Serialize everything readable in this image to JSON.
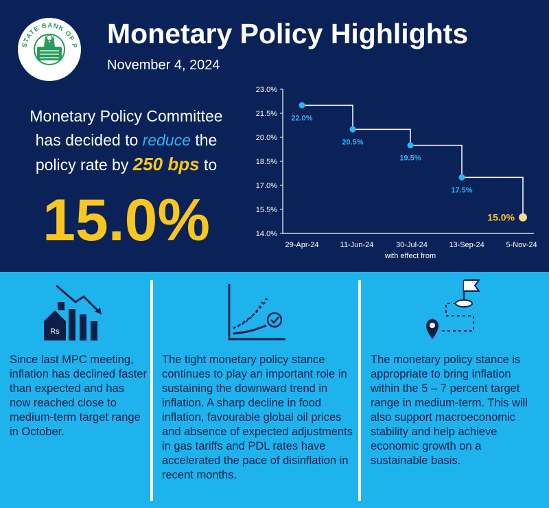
{
  "header": {
    "title": "Monetary Policy Highlights",
    "date": "November 4, 2024"
  },
  "logo": {
    "text": "STATE BANK OF PAKISTAN"
  },
  "decision": {
    "line1": "Monetary Policy Committee",
    "line2_a": "has decided to ",
    "line2_em": "reduce",
    "line2_b": " the",
    "line3_a": "policy rate by ",
    "line3_em": "250 bps",
    "line3_b": " to",
    "rate": "15.0%"
  },
  "chart_data": {
    "type": "line",
    "step": true,
    "x": [
      "29-Apr-24",
      "11-Jun-24",
      "30-Jul-24",
      "13-Sep-24",
      "5-Nov-24"
    ],
    "values": [
      22.0,
      20.5,
      19.5,
      17.5,
      15.0
    ],
    "data_labels": [
      "22.0%",
      "20.5%",
      "19.5%",
      "17.5%",
      "15.0%"
    ],
    "xlabel": "with effect from",
    "ylabel": "",
    "ylim": [
      14.0,
      23.0
    ],
    "yticks": [
      "23.0%",
      "21.5%",
      "20.0%",
      "18.5%",
      "17.0%",
      "15.5%",
      "14.0%"
    ],
    "grid": false,
    "colors": {
      "point": "#2fb3f0",
      "label": "#2fb3f0",
      "last_point": "#f7dc8c",
      "last_label": "#f7c71f",
      "line": "#ffffff",
      "axis": "#ffffff"
    }
  },
  "columns": [
    {
      "icon": "declining-chart-house-icon",
      "icon_text": "Rs",
      "text": "Since last MPC meeting, inflation has declined faster than expected and has now reached close to medium-term target range in October."
    },
    {
      "icon": "trend-checkmark-icon",
      "text": "The tight monetary policy stance continues to play an important role in sustaining the downward trend in inflation. A sharp decline in food inflation, favourable global oil prices and absence of expected adjustments in gas tariffs and PDL rates have accelerated the pace of disinflation in recent months."
    },
    {
      "icon": "route-to-target-icon",
      "text": "The monetary policy stance is appropriate to bring inflation within the 5 – 7 percent target range in medium-term. This will also support macroeconomic stability and help achieve economic growth on a sustainable basis."
    }
  ],
  "colors": {
    "navy": "#0b2259",
    "sky": "#1fb3ee",
    "yellow": "#f7c71f",
    "accent_blue": "#2fb3f0",
    "logo_green": "#2a9d5c"
  }
}
